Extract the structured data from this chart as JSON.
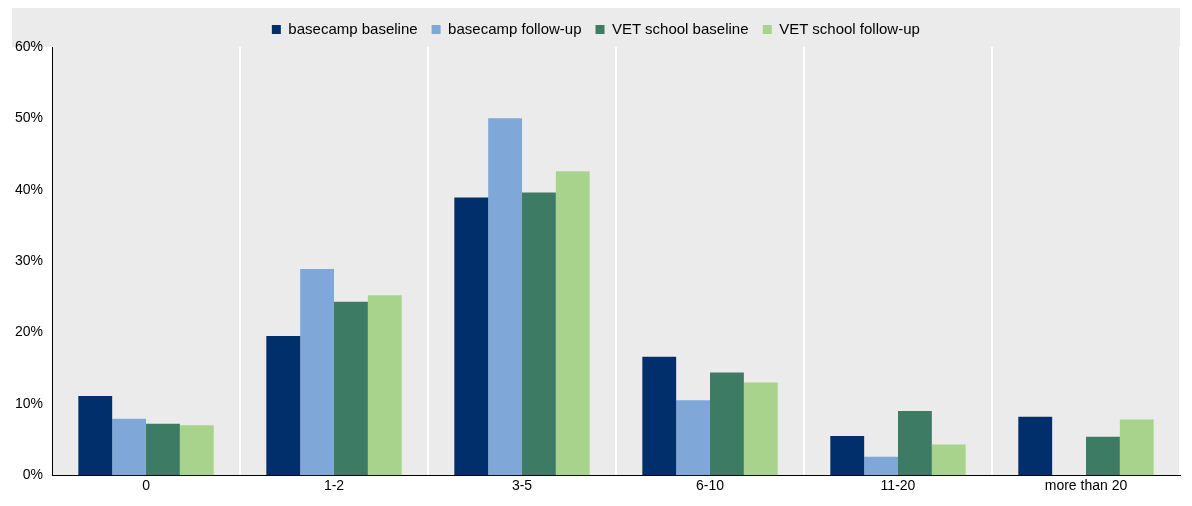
{
  "chart_data": {
    "type": "bar",
    "categories": [
      "0",
      "1-2",
      "3-5",
      "6-10",
      "11-20",
      "more than 20"
    ],
    "series": [
      {
        "name": "basecamp baseline",
        "color": "#002f6c",
        "values": [
          11.1,
          19.5,
          38.9,
          16.6,
          5.5,
          8.2
        ]
      },
      {
        "name": "basecamp follow-up",
        "color": "#7fa8d9",
        "values": [
          7.9,
          28.9,
          50.0,
          10.5,
          2.6,
          0
        ]
      },
      {
        "name": "VET school baseline",
        "color": "#3e7b65",
        "values": [
          7.2,
          24.3,
          39.6,
          14.4,
          9.0,
          5.4
        ]
      },
      {
        "name": "VET school follow-up",
        "color": "#a8d38c",
        "values": [
          7.0,
          25.2,
          42.6,
          13.0,
          4.3,
          7.8
        ]
      }
    ],
    "ylim": [
      0,
      60
    ],
    "yticks": [
      {
        "value": 0,
        "label": "0%"
      },
      {
        "value": 10,
        "label": "10%"
      },
      {
        "value": 20,
        "label": "20%"
      },
      {
        "value": 30,
        "label": "30%"
      },
      {
        "value": 40,
        "label": "40%"
      },
      {
        "value": 50,
        "label": "50%"
      },
      {
        "value": 60,
        "label": "60%"
      }
    ],
    "grid": "x",
    "legend": "top"
  }
}
